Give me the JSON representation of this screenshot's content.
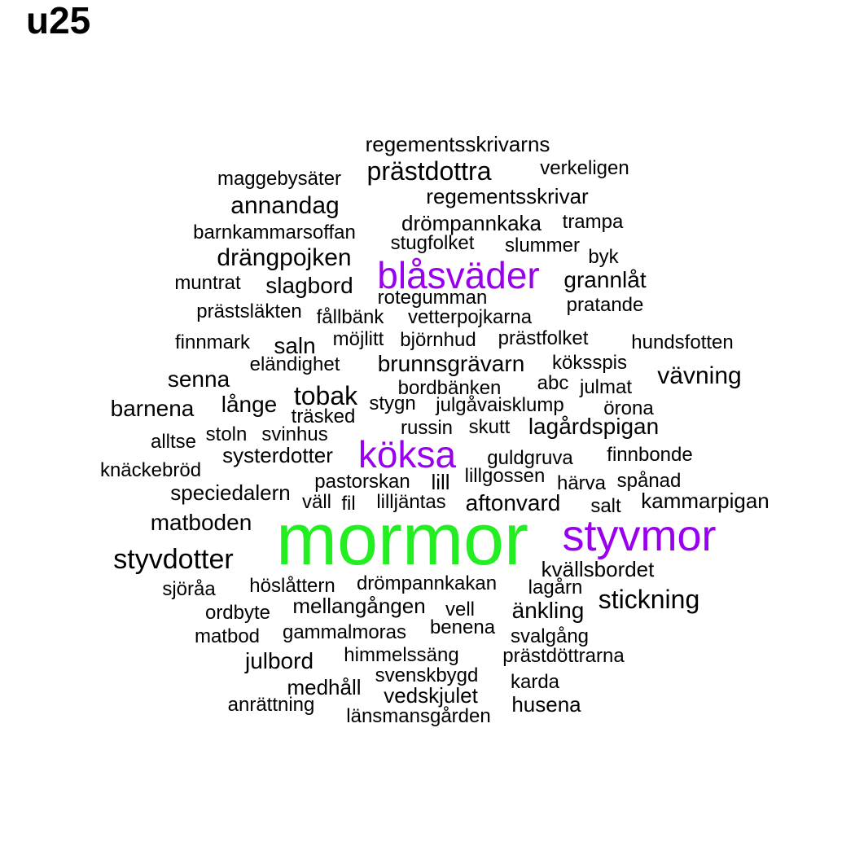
{
  "title": "u25",
  "colors": {
    "high": "#22ee22",
    "mid": "#9900ee",
    "normal": "#000000"
  },
  "words": [
    {
      "text": "mormor",
      "tier": "high"
    },
    {
      "text": "styvmor",
      "tier": "mid"
    },
    {
      "text": "köksa",
      "tier": "mid"
    },
    {
      "text": "blåsväder",
      "tier": "mid"
    },
    {
      "text": "regementsskrivarns",
      "tier": "normal"
    },
    {
      "text": "maggebysäter",
      "tier": "normal"
    },
    {
      "text": "prästdottra",
      "tier": "normal"
    },
    {
      "text": "verkeligen",
      "tier": "normal"
    },
    {
      "text": "annandag",
      "tier": "normal"
    },
    {
      "text": "regementsskrivar",
      "tier": "normal"
    },
    {
      "text": "drömpannkaka",
      "tier": "normal"
    },
    {
      "text": "trampa",
      "tier": "normal"
    },
    {
      "text": "barnkammarsoffan",
      "tier": "normal"
    },
    {
      "text": "stugfolket",
      "tier": "normal"
    },
    {
      "text": "slummer",
      "tier": "normal"
    },
    {
      "text": "byk",
      "tier": "normal"
    },
    {
      "text": "drängpojken",
      "tier": "normal"
    },
    {
      "text": "grannlåt",
      "tier": "normal"
    },
    {
      "text": "muntrat",
      "tier": "normal"
    },
    {
      "text": "slagbord",
      "tier": "normal"
    },
    {
      "text": "rotegumman",
      "tier": "normal"
    },
    {
      "text": "pratande",
      "tier": "normal"
    },
    {
      "text": "prästsläkten",
      "tier": "normal"
    },
    {
      "text": "fållbänk",
      "tier": "normal"
    },
    {
      "text": "vetterpojkarna",
      "tier": "normal"
    },
    {
      "text": "finnmark",
      "tier": "normal"
    },
    {
      "text": "saln",
      "tier": "normal"
    },
    {
      "text": "möjlitt",
      "tier": "normal"
    },
    {
      "text": "björnhud",
      "tier": "normal"
    },
    {
      "text": "prästfolket",
      "tier": "normal"
    },
    {
      "text": "hundsfotten",
      "tier": "normal"
    },
    {
      "text": "eländighet",
      "tier": "normal"
    },
    {
      "text": "brunnsgrävarn",
      "tier": "normal"
    },
    {
      "text": "köksspis",
      "tier": "normal"
    },
    {
      "text": "senna",
      "tier": "normal"
    },
    {
      "text": "vävning",
      "tier": "normal"
    },
    {
      "text": "bordbänken",
      "tier": "normal"
    },
    {
      "text": "abc",
      "tier": "normal"
    },
    {
      "text": "julmat",
      "tier": "normal"
    },
    {
      "text": "barnena",
      "tier": "normal"
    },
    {
      "text": "långe",
      "tier": "normal"
    },
    {
      "text": "tobak",
      "tier": "normal"
    },
    {
      "text": "stygn",
      "tier": "normal"
    },
    {
      "text": "julgåvaisklump",
      "tier": "normal"
    },
    {
      "text": "örona",
      "tier": "normal"
    },
    {
      "text": "träsked",
      "tier": "normal"
    },
    {
      "text": "alltse",
      "tier": "normal"
    },
    {
      "text": "stoln",
      "tier": "normal"
    },
    {
      "text": "svinhus",
      "tier": "normal"
    },
    {
      "text": "russin",
      "tier": "normal"
    },
    {
      "text": "skutt",
      "tier": "normal"
    },
    {
      "text": "lagårdspigan",
      "tier": "normal"
    },
    {
      "text": "systerdotter",
      "tier": "normal"
    },
    {
      "text": "guldgruva",
      "tier": "normal"
    },
    {
      "text": "finnbonde",
      "tier": "normal"
    },
    {
      "text": "knäckebröd",
      "tier": "normal"
    },
    {
      "text": "pastorskan",
      "tier": "normal"
    },
    {
      "text": "lill",
      "tier": "normal"
    },
    {
      "text": "lillgossen",
      "tier": "normal"
    },
    {
      "text": "härva",
      "tier": "normal"
    },
    {
      "text": "spånad",
      "tier": "normal"
    },
    {
      "text": "speciedalern",
      "tier": "normal"
    },
    {
      "text": "väll",
      "tier": "normal"
    },
    {
      "text": "fil",
      "tier": "normal"
    },
    {
      "text": "lilljäntas",
      "tier": "normal"
    },
    {
      "text": "aftonvard",
      "tier": "normal"
    },
    {
      "text": "salt",
      "tier": "normal"
    },
    {
      "text": "kammarpigan",
      "tier": "normal"
    },
    {
      "text": "matboden",
      "tier": "normal"
    },
    {
      "text": "styvdotter",
      "tier": "normal"
    },
    {
      "text": "kvällsbordet",
      "tier": "normal"
    },
    {
      "text": "sjöråa",
      "tier": "normal"
    },
    {
      "text": "höslåttern",
      "tier": "normal"
    },
    {
      "text": "drömpannkakan",
      "tier": "normal"
    },
    {
      "text": "lagårn",
      "tier": "normal"
    },
    {
      "text": "stickning",
      "tier": "normal"
    },
    {
      "text": "ordbyte",
      "tier": "normal"
    },
    {
      "text": "mellangången",
      "tier": "normal"
    },
    {
      "text": "vell",
      "tier": "normal"
    },
    {
      "text": "änkling",
      "tier": "normal"
    },
    {
      "text": "matbod",
      "tier": "normal"
    },
    {
      "text": "gammalmoras",
      "tier": "normal"
    },
    {
      "text": "benena",
      "tier": "normal"
    },
    {
      "text": "svalgång",
      "tier": "normal"
    },
    {
      "text": "julbord",
      "tier": "normal"
    },
    {
      "text": "himmelssäng",
      "tier": "normal"
    },
    {
      "text": "prästdöttrarna",
      "tier": "normal"
    },
    {
      "text": "svenskbygd",
      "tier": "normal"
    },
    {
      "text": "medhåll",
      "tier": "normal"
    },
    {
      "text": "karda",
      "tier": "normal"
    },
    {
      "text": "vedskjulet",
      "tier": "normal"
    },
    {
      "text": "husena",
      "tier": "normal"
    },
    {
      "text": "anrättning",
      "tier": "normal"
    },
    {
      "text": "länsmansgården",
      "tier": "normal"
    }
  ]
}
